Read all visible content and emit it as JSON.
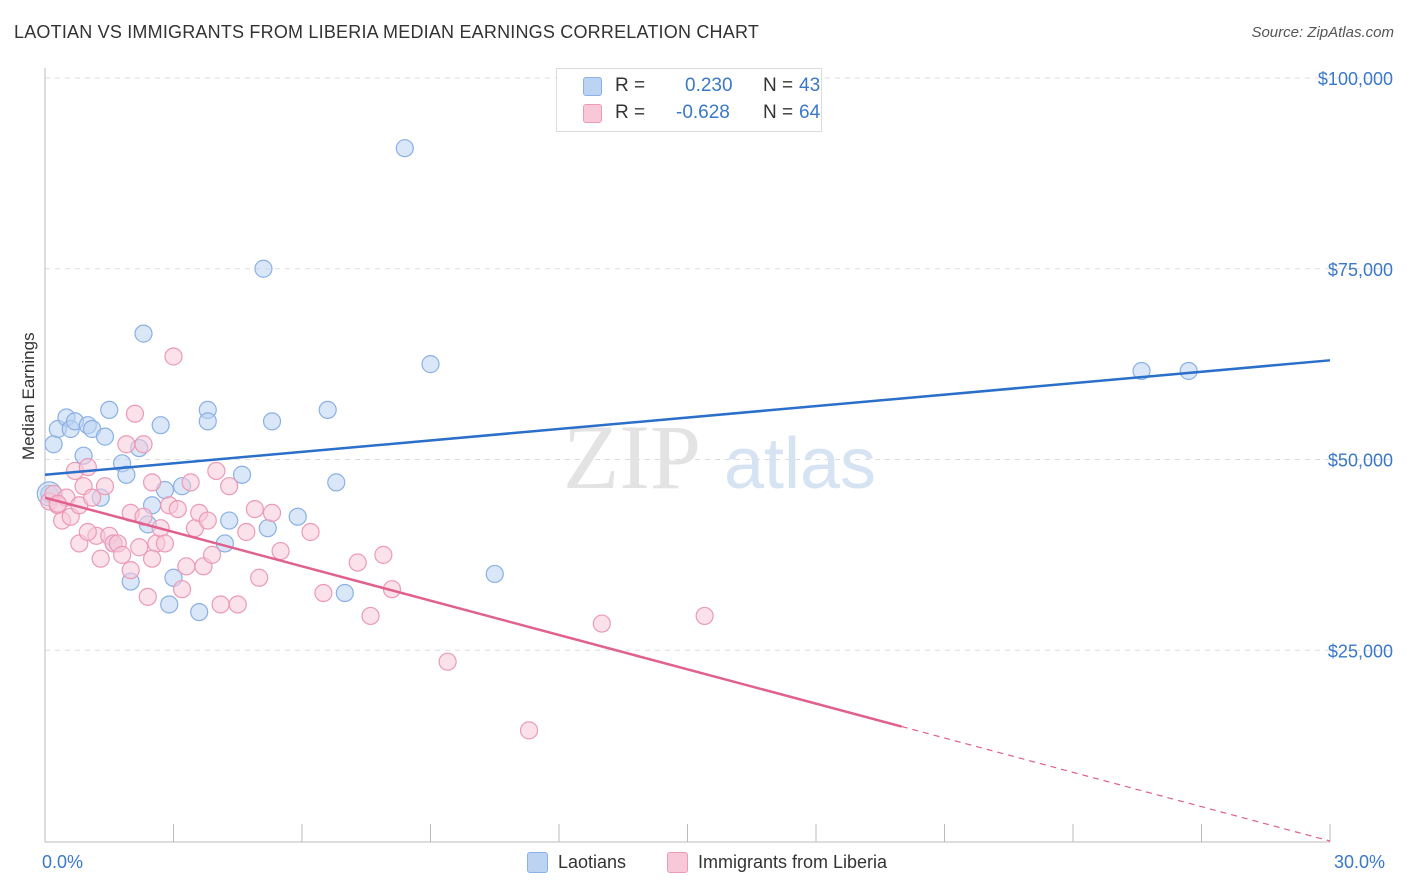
{
  "title": "LAOTIAN VS IMMIGRANTS FROM LIBERIA MEDIAN EARNINGS CORRELATION CHART",
  "source": "Source: ZipAtlas.com",
  "watermark": {
    "zip": "ZIP",
    "atlas": "atlas"
  },
  "legend_top": {
    "r_label": "R =",
    "n_label": "N =",
    "rows": [
      {
        "r": "0.230",
        "n": "43"
      },
      {
        "r": "-0.628",
        "n": "64"
      }
    ]
  },
  "legend_bottom": [
    "Laotians",
    "Immigrants from Liberia"
  ],
  "x_tick_labels": {
    "left": "0.0%",
    "right": "30.0%"
  },
  "colors": {
    "blue_fill": "#bcd3f2",
    "blue_stroke": "#8ab0e6",
    "blue_line": "#2a6fc9",
    "pink_fill": "#f8c8d8",
    "pink_stroke": "#ec9ab6",
    "pink_line": "#e0608e",
    "axis_text": "#3a78c9",
    "grid": "#dddddd"
  },
  "chart_data": {
    "type": "scatter",
    "title": "LAOTIAN VS IMMIGRANTS FROM LIBERIA MEDIAN EARNINGS CORRELATION CHART",
    "xlabel": "",
    "ylabel": "Median Earnings",
    "xlim": [
      0,
      30
    ],
    "ylim": [
      0,
      105000
    ],
    "y_ticks": [
      {
        "value": 25000,
        "label": "$25,000"
      },
      {
        "value": 50000,
        "label": "$50,000"
      },
      {
        "value": 75000,
        "label": "$75,000"
      },
      {
        "value": 100000,
        "label": "$100,000"
      }
    ],
    "grid": true,
    "series": [
      {
        "name": "Laotians",
        "r": 0.23,
        "n": 43,
        "trend": {
          "x": [
            0,
            30
          ],
          "y": [
            48000,
            63000
          ],
          "dashed_from": null
        },
        "points": [
          [
            0.1,
            45500
          ],
          [
            0.2,
            52000
          ],
          [
            0.3,
            54000
          ],
          [
            0.5,
            55500
          ],
          [
            0.6,
            54000
          ],
          [
            0.7,
            55000
          ],
          [
            0.9,
            50500
          ],
          [
            1.0,
            54500
          ],
          [
            1.1,
            54000
          ],
          [
            1.3,
            45000
          ],
          [
            1.4,
            53000
          ],
          [
            1.5,
            56500
          ],
          [
            1.6,
            39000
          ],
          [
            1.8,
            49500
          ],
          [
            1.9,
            48000
          ],
          [
            2.0,
            34000
          ],
          [
            2.2,
            51500
          ],
          [
            2.3,
            66500
          ],
          [
            2.4,
            41500
          ],
          [
            2.5,
            44000
          ],
          [
            2.7,
            54500
          ],
          [
            2.8,
            46000
          ],
          [
            2.9,
            31000
          ],
          [
            3.0,
            34500
          ],
          [
            3.2,
            46500
          ],
          [
            3.6,
            30000
          ],
          [
            3.8,
            56500
          ],
          [
            3.8,
            55000
          ],
          [
            4.2,
            39000
          ],
          [
            4.3,
            42000
          ],
          [
            4.6,
            48000
          ],
          [
            5.1,
            75000
          ],
          [
            5.2,
            41000
          ],
          [
            5.3,
            55000
          ],
          [
            5.9,
            42500
          ],
          [
            6.6,
            56500
          ],
          [
            6.8,
            47000
          ],
          [
            7.0,
            32500
          ],
          [
            8.4,
            90800
          ],
          [
            9.0,
            62500
          ],
          [
            10.5,
            35000
          ],
          [
            25.6,
            61600
          ],
          [
            26.7,
            61600
          ]
        ]
      },
      {
        "name": "Immigrants from Liberia",
        "r": -0.628,
        "n": 64,
        "trend": {
          "x": [
            0,
            20
          ],
          "y": [
            45000,
            15000
          ],
          "dashed_to": [
            30,
            0
          ]
        },
        "points": [
          [
            0.1,
            44500
          ],
          [
            0.2,
            45500
          ],
          [
            0.3,
            44000
          ],
          [
            0.4,
            42000
          ],
          [
            0.5,
            45000
          ],
          [
            0.6,
            42500
          ],
          [
            0.7,
            48500
          ],
          [
            0.8,
            44000
          ],
          [
            0.8,
            39000
          ],
          [
            0.9,
            46500
          ],
          [
            1.0,
            49000
          ],
          [
            1.1,
            45000
          ],
          [
            1.2,
            40000
          ],
          [
            1.3,
            37000
          ],
          [
            1.4,
            46500
          ],
          [
            1.5,
            40000
          ],
          [
            1.6,
            39000
          ],
          [
            1.7,
            39000
          ],
          [
            1.8,
            37500
          ],
          [
            1.9,
            52000
          ],
          [
            2.0,
            43000
          ],
          [
            2.0,
            35500
          ],
          [
            2.1,
            56000
          ],
          [
            2.2,
            38500
          ],
          [
            2.3,
            42500
          ],
          [
            2.3,
            52000
          ],
          [
            2.4,
            32000
          ],
          [
            2.5,
            47000
          ],
          [
            2.6,
            39000
          ],
          [
            2.7,
            41000
          ],
          [
            2.8,
            39000
          ],
          [
            2.9,
            44000
          ],
          [
            3.0,
            63500
          ],
          [
            3.1,
            43500
          ],
          [
            3.2,
            33000
          ],
          [
            3.3,
            36000
          ],
          [
            3.4,
            47000
          ],
          [
            3.5,
            41000
          ],
          [
            3.6,
            43000
          ],
          [
            3.7,
            36000
          ],
          [
            3.9,
            37500
          ],
          [
            4.0,
            48500
          ],
          [
            4.1,
            31000
          ],
          [
            4.3,
            46500
          ],
          [
            4.5,
            31000
          ],
          [
            4.7,
            40500
          ],
          [
            4.9,
            43500
          ],
          [
            5.0,
            34500
          ],
          [
            5.3,
            43000
          ],
          [
            5.5,
            38000
          ],
          [
            6.2,
            40500
          ],
          [
            6.5,
            32500
          ],
          [
            7.3,
            36500
          ],
          [
            7.6,
            29500
          ],
          [
            7.9,
            37500
          ],
          [
            8.1,
            33000
          ],
          [
            9.4,
            23500
          ],
          [
            11.3,
            14500
          ],
          [
            13.0,
            28500
          ],
          [
            15.4,
            29500
          ],
          [
            0.3,
            44200
          ],
          [
            1.0,
            40500
          ],
          [
            2.5,
            37000
          ],
          [
            3.8,
            42000
          ]
        ]
      }
    ]
  }
}
